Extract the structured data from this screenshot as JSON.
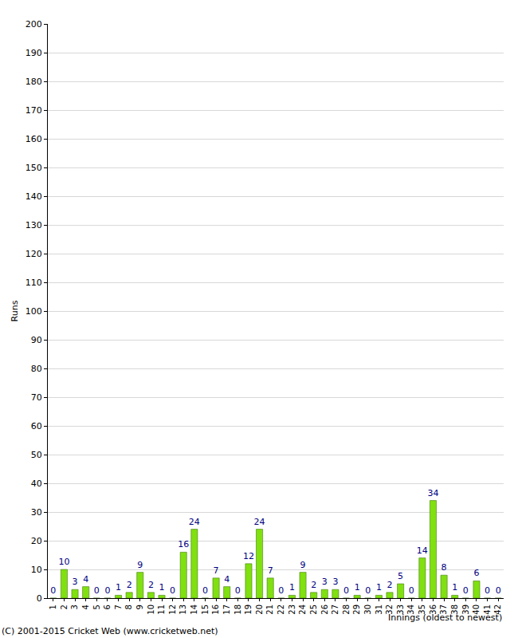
{
  "chart_data": {
    "type": "bar",
    "categories": [
      "1",
      "2",
      "3",
      "4",
      "5",
      "6",
      "7",
      "8",
      "9",
      "10",
      "11",
      "12",
      "13",
      "14",
      "15",
      "16",
      "17",
      "18",
      "19",
      "20",
      "21",
      "22",
      "23",
      "24",
      "25",
      "26",
      "27",
      "28",
      "29",
      "30",
      "31",
      "32",
      "33",
      "34",
      "35",
      "36",
      "37",
      "38",
      "39",
      "40",
      "41",
      "42"
    ],
    "values": [
      0,
      10,
      3,
      4,
      0,
      0,
      1,
      2,
      9,
      2,
      1,
      0,
      16,
      24,
      0,
      7,
      4,
      0,
      12,
      24,
      7,
      0,
      1,
      9,
      2,
      3,
      3,
      0,
      1,
      0,
      1,
      2,
      5,
      0,
      14,
      34,
      8,
      1,
      0,
      6,
      0,
      0
    ],
    "color": "#80e010",
    "x_label": "Innings (oldest to newest)",
    "y_label": "Runs",
    "ylim": [
      0,
      200
    ],
    "yticks": [
      0,
      10,
      20,
      30,
      40,
      50,
      60,
      70,
      80,
      90,
      100,
      110,
      120,
      130,
      140,
      150,
      160,
      170,
      180,
      190,
      200
    ],
    "grid": true,
    "data_labels": true,
    "annotations": [
      "(C) 2001-2015 Cricket Web (www.cricketweb.net)"
    ]
  }
}
